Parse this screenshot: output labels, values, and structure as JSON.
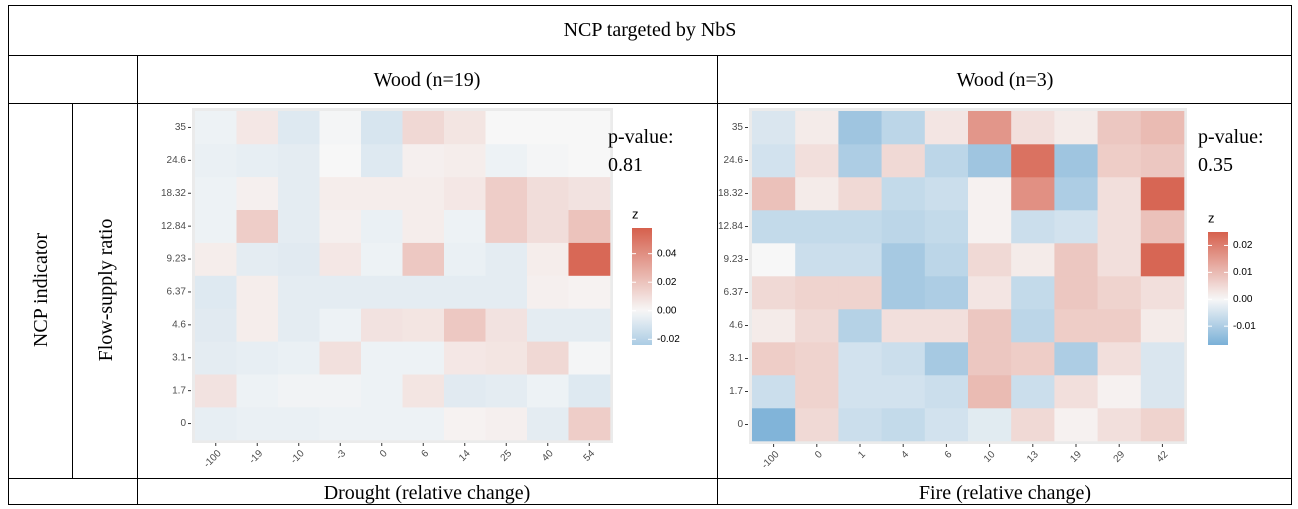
{
  "table": {
    "header": "NCP targeted by NbS",
    "row_label": "NCP indicator",
    "sub_label": "Flow-supply ratio",
    "panels": [
      {
        "title": "Wood (n=19)",
        "footer": "Drought (relative change)"
      },
      {
        "title": "Wood (n=3)",
        "footer": "Fire (relative change)"
      }
    ]
  },
  "chart_data": [
    {
      "type": "heatmap",
      "p_label": "p-value:",
      "p_value": 0.81,
      "legend_title": "z",
      "x": [
        -100,
        -19,
        -10,
        -3,
        0,
        6,
        14,
        25,
        40,
        54
      ],
      "y": [
        0,
        1.7,
        3.1,
        4.6,
        6.37,
        9.23,
        12.84,
        18.32,
        24.6,
        35
      ],
      "values": [
        [
          -0.005,
          -0.004,
          -0.004,
          -0.003,
          -0.003,
          -0.003,
          0.002,
          0.003,
          -0.006,
          0.016
        ],
        [
          0.008,
          -0.003,
          -0.002,
          -0.002,
          -0.003,
          0.007,
          -0.007,
          -0.006,
          -0.003,
          -0.008
        ],
        [
          -0.006,
          -0.005,
          -0.004,
          0.009,
          -0.003,
          -0.003,
          0.006,
          0.007,
          0.012,
          -0.001
        ],
        [
          -0.007,
          0.004,
          -0.006,
          -0.003,
          0.008,
          0.007,
          0.018,
          0.008,
          -0.006,
          -0.006
        ],
        [
          -0.008,
          0.004,
          -0.006,
          -0.006,
          -0.006,
          -0.006,
          -0.006,
          -0.006,
          0.003,
          0.002
        ],
        [
          0.004,
          -0.006,
          -0.007,
          0.006,
          -0.003,
          0.018,
          -0.004,
          -0.006,
          0.004,
          0.055
        ],
        [
          -0.003,
          0.016,
          -0.006,
          0.003,
          -0.004,
          0.004,
          -0.003,
          0.016,
          0.01,
          0.02
        ],
        [
          -0.003,
          0.003,
          -0.006,
          0.004,
          0.004,
          0.004,
          0.006,
          0.016,
          0.01,
          0.008
        ],
        [
          -0.004,
          -0.005,
          -0.006,
          0.0,
          -0.008,
          0.003,
          0.004,
          -0.003,
          -0.001,
          0.0
        ],
        [
          -0.003,
          0.006,
          -0.008,
          -0.001,
          -0.01,
          0.012,
          0.007,
          0.0,
          0.0,
          0.0
        ]
      ],
      "clim": [
        -0.024,
        0.058
      ],
      "cticks": [
        0.04,
        0.02,
        {
          "value": 0,
          "label": "0.00"
        },
        -0.02
      ],
      "low_color": "#3f8fc8",
      "mid_color": "#f7f7f7",
      "high_color": "#d6604d"
    },
    {
      "type": "heatmap",
      "p_label": "p-value:",
      "p_value": 0.35,
      "legend_title": "z",
      "x": [
        -100,
        0,
        1,
        4,
        6,
        10,
        13,
        19,
        29,
        42
      ],
      "y": [
        0,
        1.7,
        3.1,
        4.6,
        6.37,
        9.23,
        12.84,
        18.32,
        24.6,
        35
      ],
      "values": [
        [
          -0.016,
          0.005,
          -0.006,
          -0.007,
          -0.005,
          -0.003,
          0.005,
          0.001,
          0.004,
          0.006
        ],
        [
          -0.006,
          0.006,
          -0.005,
          -0.005,
          -0.006,
          0.01,
          -0.006,
          0.004,
          0.001,
          -0.004
        ],
        [
          0.007,
          0.006,
          -0.005,
          -0.006,
          -0.011,
          0.008,
          0.007,
          -0.01,
          0.004,
          -0.004
        ],
        [
          0.002,
          0.005,
          -0.009,
          0.004,
          0.004,
          0.008,
          -0.008,
          0.007,
          0.007,
          0.002
        ],
        [
          0.005,
          0.006,
          0.006,
          -0.011,
          -0.01,
          0.003,
          -0.007,
          0.008,
          0.006,
          0.004
        ],
        [
          0.0,
          -0.006,
          -0.006,
          -0.011,
          -0.008,
          0.005,
          0.002,
          0.008,
          0.004,
          0.024
        ],
        [
          -0.007,
          -0.007,
          -0.007,
          -0.008,
          -0.007,
          0.001,
          -0.006,
          -0.005,
          0.004,
          0.009
        ],
        [
          0.009,
          0.002,
          0.005,
          -0.007,
          -0.006,
          0.001,
          0.017,
          -0.01,
          0.004,
          0.024
        ],
        [
          -0.005,
          0.004,
          -0.01,
          0.005,
          -0.008,
          -0.012,
          0.022,
          -0.012,
          0.007,
          0.008
        ],
        [
          -0.004,
          0.002,
          -0.012,
          -0.008,
          0.003,
          0.016,
          0.004,
          0.002,
          0.008,
          0.01
        ]
      ],
      "clim": [
        -0.017,
        0.025
      ],
      "cticks": [
        0.02,
        0.01,
        {
          "value": 0,
          "label": "0.00"
        },
        -0.01
      ],
      "low_color": "#3f8fc8",
      "mid_color": "#f7f7f7",
      "high_color": "#d6604d"
    }
  ]
}
